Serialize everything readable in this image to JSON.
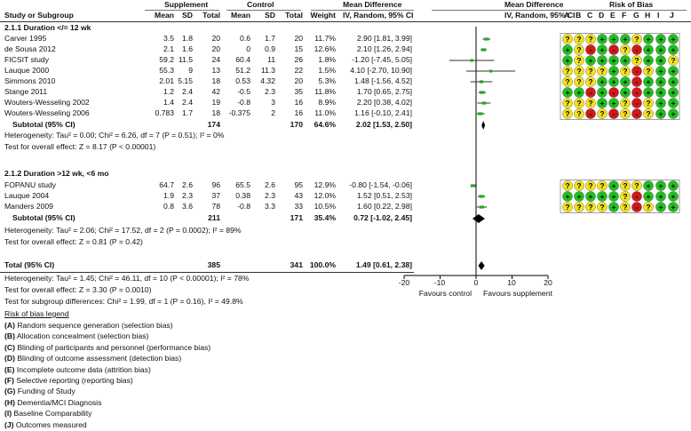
{
  "headers": {
    "group1": "Supplement",
    "group2": "Control",
    "md_title1": "Mean Difference",
    "md_sub1": "IV, Random, 95% CI",
    "md_title2": "Mean Difference",
    "md_sub2": "IV, Random, 95% CI",
    "rob_title": "Risk of Bias",
    "study": "Study or Subgroup",
    "mean1": "Mean",
    "sd1": "SD",
    "total1": "Total",
    "mean2": "Mean",
    "sd2": "SD",
    "total2": "Total",
    "weight": "Weight"
  },
  "rob_letters": [
    "A",
    "B",
    "C",
    "D",
    "E",
    "F",
    "G",
    "H",
    "I",
    "J"
  ],
  "subgroups": [
    {
      "title": "2.1.1 Duration </= 12 wk",
      "subtotal": {
        "label": "Subtotal (95% CI)",
        "total1": "174",
        "total2": "170",
        "weight": "64.6%",
        "ci": "2.02 [1.53, 2.50]"
      },
      "heterogeneity": "Heterogeneity: Tau² = 0.00; Chi² = 6.26, df = 7 (P = 0.51); I² = 0%",
      "overall": "Test for overall effect: Z = 8.17 (P < 0.00001)"
    },
    {
      "title": "2.1.2 Duration >12 wk, <6 mo",
      "subtotal": {
        "label": "Subtotal (95% CI)",
        "total1": "211",
        "total2": "171",
        "weight": "35.4%",
        "ci": "0.72 [-1.02, 2.45]"
      },
      "heterogeneity": "Heterogeneity: Tau² = 2.06; Chi² = 17.52, df = 2 (P = 0.0002); I² = 89%",
      "overall": "Test for overall effect: Z = 0.81 (P = 0.42)"
    }
  ],
  "total": {
    "label": "Total (95% CI)",
    "total1": "385",
    "total2": "341",
    "weight": "100.0%",
    "ci": "1.49 [0.61, 2.38]",
    "heterogeneity": "Heterogeneity: Tau² = 1.45; Chi² = 46.11, df = 10 (P < 0.00001); I² = 78%",
    "overall": "Test for overall effect: Z = 3.30 (P = 0.0010)",
    "subgroup": "Test for subgroup differences: Chi² = 1.99, df = 1 (P = 0.16), I² = 49.8%"
  },
  "axis": {
    "ticks": [
      "-20",
      "-10",
      "0",
      "10",
      "20"
    ],
    "favours_left": "Favours control",
    "favours_right": "Favours supplement"
  },
  "legend": {
    "title": "Risk of bias legend",
    "items": [
      {
        "key": "(A)",
        "text": " Random sequence generation (selection bias)"
      },
      {
        "key": "(B)",
        "text": " Allocation concealment (selection bias)"
      },
      {
        "key": "(C)",
        "text": " Blinding of participants and personnel (performance bias)"
      },
      {
        "key": "(D)",
        "text": " Blinding of outcome assessment (detection bias)"
      },
      {
        "key": "(E)",
        "text": " Incomplete outcome data (attrition bias)"
      },
      {
        "key": "(F)",
        "text": " Selective reporting (reporting bias)"
      },
      {
        "key": "(G)",
        "text": " Funding of Study"
      },
      {
        "key": "(H)",
        "text": " Dementia/MCI Diagnosis"
      },
      {
        "key": "(I)",
        "text": " Baseline Comparability"
      },
      {
        "key": "(J)",
        "text": " Outcomes measured"
      }
    ]
  },
  "colors": {
    "low": "#1fc01f",
    "unclear": "#f2e21a",
    "high": "#d01818",
    "marker": "#22aa22",
    "diamond": "#000000"
  },
  "chart_data": {
    "type": "forest",
    "xlim": [
      -20,
      20
    ],
    "x_ticks": [
      -20,
      -10,
      0,
      10,
      20
    ],
    "studies": [
      {
        "group": 0,
        "name": "Carver 1995",
        "m1": "3.5",
        "sd1": "1.8",
        "n1": "20",
        "m2": "0.6",
        "sd2": "1.7",
        "n2": "20",
        "weight": "11.7%",
        "ci_text": "2.90 [1.81, 3.99]",
        "md": 2.9,
        "lo": 1.81,
        "hi": 3.99,
        "w": 11.7,
        "rob": [
          "?",
          "?",
          "?",
          "+",
          "+",
          "+",
          "?",
          "+",
          "+",
          "+"
        ]
      },
      {
        "group": 0,
        "name": "de Sousa 2012",
        "m1": "2.1",
        "sd1": "1.6",
        "n1": "20",
        "m2": "0",
        "sd2": "0.9",
        "n2": "15",
        "weight": "12.6%",
        "ci_text": "2.10 [1.26, 2.94]",
        "md": 2.1,
        "lo": 1.26,
        "hi": 2.94,
        "w": 12.6,
        "rob": [
          "+",
          "?",
          "-",
          "+",
          "-",
          "?",
          "-",
          "+",
          "+",
          "+"
        ]
      },
      {
        "group": 0,
        "name": "FICSIT study",
        "m1": "59.2",
        "sd1": "11.5",
        "n1": "24",
        "m2": "60.4",
        "sd2": "11",
        "n2": "26",
        "weight": "1.8%",
        "ci_text": "-1.20 [-7.45, 5.05]",
        "md": -1.2,
        "lo": -7.45,
        "hi": 5.05,
        "w": 1.8,
        "rob": [
          "+",
          "?",
          "+",
          "+",
          "+",
          "+",
          "?",
          "+",
          "+",
          "?"
        ]
      },
      {
        "group": 0,
        "name": "Lauque 2000",
        "m1": "55.3",
        "sd1": "9",
        "n1": "13",
        "m2": "51.2",
        "sd2": "11.3",
        "n2": "22",
        "weight": "1.5%",
        "ci_text": "4.10 [-2.70, 10.90]",
        "md": 4.1,
        "lo": -2.7,
        "hi": 10.9,
        "w": 1.5,
        "rob": [
          "?",
          "?",
          "?",
          "?",
          "+",
          "?",
          "-",
          "?",
          "+",
          "+"
        ]
      },
      {
        "group": 0,
        "name": "Simmons 2010",
        "m1": "2.01",
        "sd1": "5.15",
        "n1": "18",
        "m2": "0.53",
        "sd2": "4.32",
        "n2": "20",
        "weight": "5.3%",
        "ci_text": "1.48 [-1.56, 4.52]",
        "md": 1.48,
        "lo": -1.56,
        "hi": 4.52,
        "w": 5.3,
        "rob": [
          "?",
          "?",
          "?",
          "+",
          "+",
          "+",
          "-",
          "+",
          "+",
          "+"
        ]
      },
      {
        "group": 0,
        "name": "Stange 2011",
        "m1": "1.2",
        "sd1": "2.4",
        "n1": "42",
        "m2": "-0.5",
        "sd2": "2.3",
        "n2": "35",
        "weight": "11.8%",
        "ci_text": "1.70 [0.65, 2.75]",
        "md": 1.7,
        "lo": 0.65,
        "hi": 2.75,
        "w": 11.8,
        "rob": [
          "+",
          "+",
          "-",
          "+",
          "-",
          "+",
          "-",
          "+",
          "+",
          "+"
        ]
      },
      {
        "group": 0,
        "name": "Wouters-Wesseling 2002",
        "m1": "1.4",
        "sd1": "2.4",
        "n1": "19",
        "m2": "-0.8",
        "sd2": "3",
        "n2": "16",
        "weight": "8.9%",
        "ci_text": "2.20 [0.38, 4.02]",
        "md": 2.2,
        "lo": 0.38,
        "hi": 4.02,
        "w": 8.9,
        "rob": [
          "?",
          "?",
          "?",
          "+",
          "+",
          "?",
          "-",
          "?",
          "+",
          "+"
        ]
      },
      {
        "group": 0,
        "name": "Wouters-Wesseling 2006",
        "m1": "0.783",
        "sd1": "1.7",
        "n1": "18",
        "m2": "-0.375",
        "sd2": "2",
        "n2": "16",
        "weight": "11.0%",
        "ci_text": "1.16 [-0.10, 2.41]",
        "md": 1.16,
        "lo": -0.1,
        "hi": 2.41,
        "w": 11.0,
        "rob": [
          "?",
          "?",
          "-",
          "?",
          "-",
          "?",
          "-",
          "?",
          "+",
          "+"
        ]
      },
      {
        "group": 1,
        "name": "FOPANU study",
        "m1": "64.7",
        "sd1": "2.6",
        "n1": "96",
        "m2": "65.5",
        "sd2": "2.6",
        "n2": "95",
        "weight": "12.9%",
        "ci_text": "-0.80 [-1.54, -0.06]",
        "md": -0.8,
        "lo": -1.54,
        "hi": -0.06,
        "w": 12.9,
        "rob": [
          "?",
          "?",
          "?",
          "?",
          "+",
          "?",
          "?",
          "+",
          "+",
          "+"
        ]
      },
      {
        "group": 1,
        "name": "Lauque 2004",
        "m1": "1.9",
        "sd1": "2.3",
        "n1": "37",
        "m2": "0.38",
        "sd2": "2.3",
        "n2": "43",
        "weight": "12.0%",
        "ci_text": "1.52 [0.51, 2.53]",
        "md": 1.52,
        "lo": 0.51,
        "hi": 2.53,
        "w": 12.0,
        "rob": [
          "+",
          "+",
          "+",
          "+",
          "+",
          "?",
          "-",
          "+",
          "+",
          "+"
        ]
      },
      {
        "group": 1,
        "name": "Manders 2009",
        "m1": "0.8",
        "sd1": "3.6",
        "n1": "78",
        "m2": "-0.8",
        "sd2": "3.3",
        "n2": "33",
        "weight": "10.5%",
        "ci_text": "1.60 [0.22, 2.98]",
        "md": 1.6,
        "lo": 0.22,
        "hi": 2.98,
        "w": 10.5,
        "rob": [
          "?",
          "?",
          "?",
          "?",
          "+",
          "?",
          "-",
          "?",
          "+",
          "+"
        ]
      }
    ],
    "pooled": [
      {
        "label": "Subtotal (95% CI)",
        "md": 2.02,
        "lo": 1.53,
        "hi": 2.5
      },
      {
        "label": "Subtotal (95% CI)",
        "md": 0.72,
        "lo": -1.02,
        "hi": 2.45
      },
      {
        "label": "Total (95% CI)",
        "md": 1.49,
        "lo": 0.61,
        "hi": 2.38
      }
    ]
  }
}
